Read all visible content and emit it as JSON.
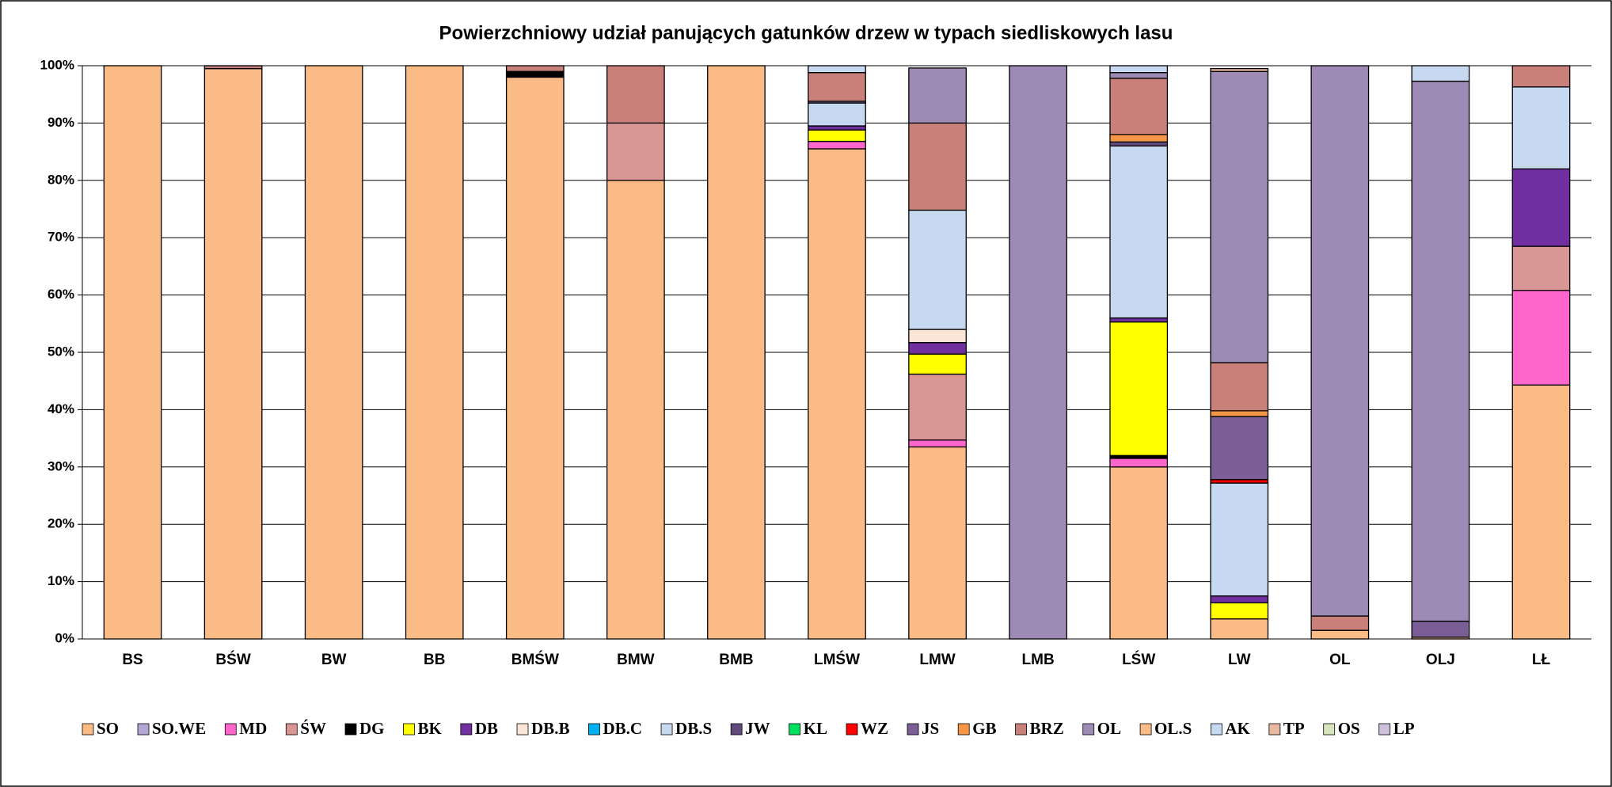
{
  "chart_data": {
    "type": "stacked_bar",
    "title": "Powierzchniowy udział panujących gatunków drzew w typach siedliskowych lasu",
    "categories": [
      "BS",
      "BŚW",
      "BW",
      "BB",
      "BMŚW",
      "BMW",
      "BMB",
      "LMŚW",
      "LMW",
      "LMB",
      "LŚW",
      "LW",
      "OL",
      "OLJ",
      "LŁ"
    ],
    "ylim": [
      0,
      100
    ],
    "yticks": [
      {
        "value": 0,
        "label": "0%"
      },
      {
        "value": 10,
        "label": "10%"
      },
      {
        "value": 20,
        "label": "20%"
      },
      {
        "value": 30,
        "label": "30%"
      },
      {
        "value": 40,
        "label": "40%"
      },
      {
        "value": 50,
        "label": "50%"
      },
      {
        "value": 60,
        "label": "60%"
      },
      {
        "value": 70,
        "label": "70%"
      },
      {
        "value": 80,
        "label": "80%"
      },
      {
        "value": 90,
        "label": "90%"
      },
      {
        "value": 100,
        "label": "100%"
      }
    ],
    "grid": true,
    "legend": "bottom",
    "series": [
      {
        "name": "SO",
        "color": "#fabb87",
        "values": [
          100,
          99.5,
          100,
          100,
          98,
          80,
          100,
          85.5,
          33.5,
          0,
          30,
          3.5,
          1.5,
          0.3,
          44.3
        ]
      },
      {
        "name": "SO.WE",
        "color": "#b3a6d4",
        "values": [
          0,
          0,
          0,
          0,
          0,
          0,
          0,
          0,
          0,
          0,
          0,
          0,
          0,
          0,
          0
        ]
      },
      {
        "name": "MD",
        "color": "#ff66cc",
        "values": [
          0,
          0,
          0,
          0,
          0,
          0,
          0,
          1.3,
          1.2,
          0,
          1.5,
          0,
          0,
          0,
          16.5
        ]
      },
      {
        "name": "ŚW",
        "color": "#d99694",
        "values": [
          0,
          0,
          0,
          0,
          0,
          10,
          0,
          0,
          11.5,
          0,
          0,
          0,
          0,
          0,
          7.7
        ]
      },
      {
        "name": "DG",
        "color": "#000000",
        "values": [
          0,
          0,
          0,
          0,
          1,
          0,
          0,
          0,
          0,
          0,
          0.5,
          0,
          0,
          0,
          0
        ]
      },
      {
        "name": "BK",
        "color": "#ffff00",
        "values": [
          0,
          0,
          0,
          0,
          0,
          0,
          0,
          2,
          3.5,
          0,
          23.3,
          2.8,
          0,
          0,
          0
        ]
      },
      {
        "name": "DB",
        "color": "#7030a0",
        "values": [
          0,
          0,
          0,
          0,
          0,
          0,
          0,
          0.7,
          2,
          0,
          0.7,
          1.2,
          0,
          0,
          13.5
        ]
      },
      {
        "name": "DB.B",
        "color": "#fbe5d6",
        "values": [
          0,
          0,
          0,
          0,
          0,
          0,
          0,
          0,
          2.3,
          0,
          0,
          0,
          0,
          0,
          0
        ]
      },
      {
        "name": "DB.C",
        "color": "#00b0f0",
        "values": [
          0,
          0,
          0,
          0,
          0,
          0,
          0,
          0,
          0,
          0,
          0,
          0,
          0,
          0,
          0
        ]
      },
      {
        "name": "DB.S",
        "color": "#c6d9f1",
        "values": [
          0,
          0,
          0,
          0,
          0,
          0,
          0,
          4,
          20.8,
          0,
          30,
          19.7,
          0,
          0,
          14.3
        ]
      },
      {
        "name": "JW",
        "color": "#604a7b",
        "values": [
          0,
          0,
          0,
          0,
          0,
          0,
          0,
          0,
          0,
          0,
          0.7,
          0,
          0,
          0,
          0
        ]
      },
      {
        "name": "KL",
        "color": "#00e060",
        "values": [
          0,
          0,
          0,
          0,
          0,
          0,
          0,
          0,
          0,
          0,
          0,
          0,
          0,
          0,
          0
        ]
      },
      {
        "name": "WZ",
        "color": "#ff0000",
        "values": [
          0,
          0,
          0,
          0,
          0,
          0,
          0,
          0,
          0,
          0,
          0,
          0.6,
          0,
          0,
          0
        ]
      },
      {
        "name": "JS",
        "color": "#7b5e96",
        "values": [
          0,
          0,
          0,
          0,
          0,
          0,
          0,
          0.3,
          0,
          0,
          0,
          11,
          0,
          2.8,
          0
        ]
      },
      {
        "name": "GB",
        "color": "#f79646",
        "values": [
          0,
          0,
          0,
          0,
          0,
          0,
          0,
          0,
          0,
          0,
          1.3,
          1,
          0,
          0,
          0
        ]
      },
      {
        "name": "BRZ",
        "color": "#c9807a",
        "values": [
          0,
          0.5,
          0,
          0,
          1,
          10,
          0,
          5,
          15.2,
          0,
          9.8,
          8.4,
          2.5,
          0,
          3.7
        ]
      },
      {
        "name": "OL",
        "color": "#9d8ab5",
        "values": [
          0,
          0,
          0,
          0,
          0,
          0,
          0,
          0,
          9.6,
          100,
          1,
          50.8,
          96,
          94.2,
          0
        ]
      },
      {
        "name": "OL.S",
        "color": "#fabb87",
        "values": [
          0,
          0,
          0,
          0,
          0,
          0,
          0,
          0,
          0,
          0,
          0,
          0,
          0,
          0,
          0
        ]
      },
      {
        "name": "AK",
        "color": "#c6d9f1",
        "values": [
          0,
          0,
          0,
          0,
          0,
          0,
          0,
          1.2,
          0,
          0,
          1.2,
          0,
          0,
          2.7,
          0
        ]
      },
      {
        "name": "TP",
        "color": "#e6b9a0",
        "values": [
          0,
          0,
          0,
          0,
          0,
          0,
          0,
          0,
          0,
          0,
          0,
          0.5,
          0,
          0,
          0
        ]
      },
      {
        "name": "OS",
        "color": "#d7e4bd",
        "values": [
          0,
          0,
          0,
          0,
          0,
          0,
          0,
          0,
          0,
          0,
          0,
          0,
          0,
          0,
          0
        ]
      },
      {
        "name": "LP",
        "color": "#ccc0da",
        "values": [
          0,
          0,
          0,
          0,
          0,
          0,
          0,
          0,
          0,
          0,
          0,
          0,
          0,
          0,
          0
        ]
      }
    ]
  }
}
